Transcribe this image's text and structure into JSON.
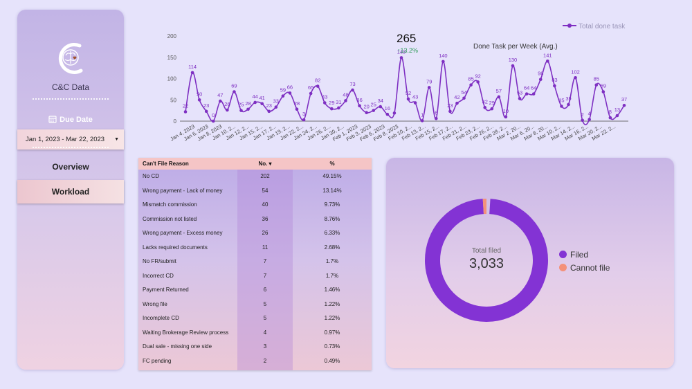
{
  "sidebar": {
    "brand": "C&C Data",
    "due_date_label": "Due Date",
    "date_range": "Jan 1, 2023 - Mar 22, 2023",
    "nav": [
      {
        "label": "Overview"
      },
      {
        "label": "Workload"
      }
    ]
  },
  "chart": {
    "legend_label": "Total done task",
    "kpi_value": "265",
    "kpi_delta": "13.2%",
    "title": "Done Task per Week (Avg.)",
    "color": "#7e2fc2"
  },
  "chart_data": {
    "type": "line",
    "title": "Done Task per Week (Avg.)",
    "ylim": [
      0,
      200
    ],
    "yticks": [
      0,
      50,
      100,
      150,
      200
    ],
    "series": [
      {
        "name": "Total done task",
        "values": [
          22,
          114,
          50,
          23,
          0,
          47,
          26,
          69,
          25,
          28,
          44,
          41,
          23,
          33,
          59,
          66,
          28,
          3,
          65,
          82,
          43,
          29,
          31,
          48,
          73,
          36,
          20,
          25,
          34,
          16,
          19,
          149,
          52,
          43,
          1,
          79,
          6,
          140,
          23,
          42,
          54,
          85,
          92,
          32,
          29,
          57,
          10,
          130,
          53,
          64,
          64,
          98,
          141,
          83,
          35,
          39,
          102,
          2,
          4,
          85,
          69,
          8,
          13,
          37
        ],
        "labels": [
          "22",
          "114",
          "50",
          "23",
          "0",
          "47",
          "26",
          "69",
          "25",
          "28",
          "44",
          "41",
          "23",
          "33",
          "59",
          "66",
          "28",
          "3",
          "65",
          "82",
          "43",
          "29",
          "31",
          "48",
          "73",
          "36",
          "20",
          "25",
          "34",
          "16",
          "",
          "149",
          "52",
          "43",
          "1",
          "79",
          "6",
          "140",
          "23",
          "42",
          "54",
          "85",
          "92",
          "32",
          "29",
          "57",
          "10",
          "130",
          "53",
          "64",
          "64",
          "98",
          "141",
          "83",
          "35",
          "39",
          "102",
          "2",
          "4",
          "85",
          "69",
          "8",
          "13",
          "37"
        ]
      }
    ],
    "xticks": [
      "Jan 4, 2023",
      "Jan 6, 2023",
      "Jan 8, 2023",
      "Jan 10, 2...",
      "Jan 12, 2...",
      "Jan 15, 2...",
      "Jan 17, 2...",
      "Jan 19, 2...",
      "Jan 22, 2...",
      "Jan 24, 2...",
      "Jan 26, 2...",
      "Jan 30, 2...",
      "Feb 1, 2023",
      "Feb 3, 2023",
      "Feb 6, 2023",
      "Feb 8, 2023",
      "Feb 10, 2...",
      "Feb 13, 2...",
      "Feb 15, 2...",
      "Feb 17, 2...",
      "Feb 21, 2...",
      "Feb 23, 2...",
      "Feb 26, 2...",
      "Feb 28, 2...",
      "Mar 2, 20...",
      "Mar 6, 20...",
      "Mar 8, 20...",
      "Mar 10, 2...",
      "Mar 14, 2...",
      "Mar 16, 2...",
      "Mar 20, 2...",
      "Mar 22, 2..."
    ]
  },
  "table": {
    "headers": [
      "Can't File Reason",
      "No. ▾",
      "%"
    ],
    "rows": [
      [
        "No CD",
        "202",
        "49.15%"
      ],
      [
        "Wrong payment - Lack of money",
        "54",
        "13.14%"
      ],
      [
        "Mismatch commission",
        "40",
        "9.73%"
      ],
      [
        "Commission not listed",
        "36",
        "8.76%"
      ],
      [
        "Wrong payment - Excess money",
        "26",
        "6.33%"
      ],
      [
        "Lacks required documents",
        "11",
        "2.68%"
      ],
      [
        "No FR/submit",
        "7",
        "1.7%"
      ],
      [
        "Incorrect CD",
        "7",
        "1.7%"
      ],
      [
        "Payment Returned",
        "6",
        "1.46%"
      ],
      [
        "Wrong file",
        "5",
        "1.22%"
      ],
      [
        "Incomplete CD",
        "5",
        "1.22%"
      ],
      [
        "Waiting Brokerage Review process",
        "4",
        "0.97%"
      ],
      [
        "Dual sale - missing one side",
        "3",
        "0.73%"
      ],
      [
        "FC pending",
        "2",
        "0.49%"
      ]
    ]
  },
  "donut": {
    "label": "Total filed",
    "value": "3,033",
    "filed_fraction": 0.98,
    "legend": [
      {
        "label": "Filed",
        "color": "#8333d4"
      },
      {
        "label": "Cannot file",
        "color": "#f4917a"
      }
    ]
  }
}
